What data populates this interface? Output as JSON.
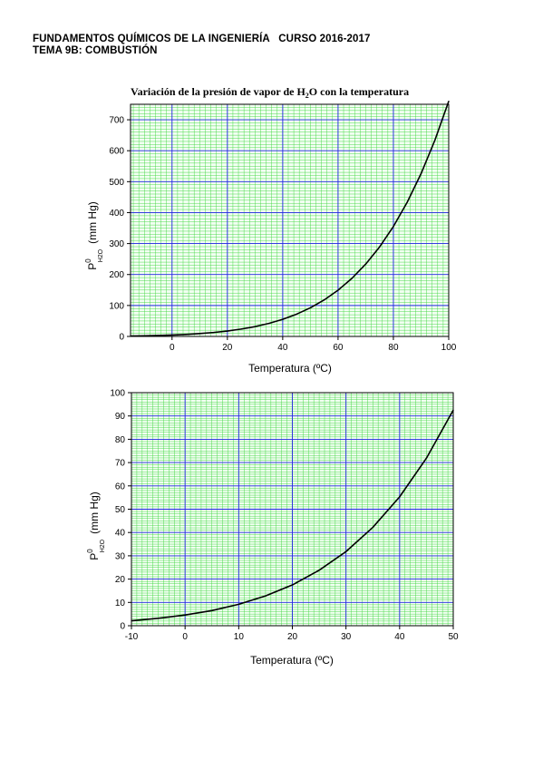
{
  "header": {
    "line1": "FUNDAMENTOS QUÍMICOS DE LA INGENIERÍA   CURSO 2016-2017",
    "line2": "TEMA 9B: COMBUSTIÓN"
  },
  "chart_data": [
    {
      "type": "line",
      "title_main": "Variación de la presión de vapor de H",
      "title_sub": "2",
      "title_end": "O con la temperatura",
      "xlabel": "Temperatura (ºC)",
      "ylabel_main": "P",
      "ylabel_sup": "0",
      "ylabel_sub": "H2O",
      "ylabel_units": "(mm Hg)",
      "xlim": [
        -15,
        100
      ],
      "ylim": [
        0,
        750
      ],
      "xticks": [
        0,
        20,
        40,
        60,
        80,
        100
      ],
      "yticks": [
        0,
        100,
        200,
        300,
        400,
        500,
        600,
        700
      ],
      "grid": true,
      "series": [
        {
          "color": "#000000",
          "x": [
            -15,
            -10,
            -5,
            0,
            5,
            10,
            15,
            20,
            25,
            30,
            35,
            40,
            45,
            50,
            55,
            60,
            65,
            70,
            75,
            80,
            85,
            90,
            95,
            100
          ],
          "y": [
            1.4,
            2.1,
            3.2,
            4.6,
            6.5,
            9.2,
            12.8,
            17.5,
            23.8,
            31.8,
            42.2,
            55.3,
            71.9,
            92.5,
            118.0,
            149.4,
            187.5,
            233.7,
            289.1,
            355.1,
            433.6,
            525.8,
            633.9,
            760.0
          ]
        }
      ]
    },
    {
      "type": "line",
      "xlabel": "Temperatura (ºC)",
      "ylabel_main": "P",
      "ylabel_sup": "0",
      "ylabel_sub": "H2O",
      "ylabel_units": "(mm Hg)",
      "xlim": [
        -10,
        50
      ],
      "ylim": [
        0,
        100
      ],
      "xticks": [
        -10,
        0,
        10,
        20,
        30,
        40,
        50
      ],
      "yticks": [
        0,
        10,
        20,
        30,
        40,
        50,
        60,
        70,
        80,
        90,
        100
      ],
      "grid": true,
      "series": [
        {
          "color": "#000000",
          "x": [
            -10,
            -5,
            0,
            5,
            10,
            15,
            20,
            25,
            30,
            35,
            40,
            45,
            50
          ],
          "y": [
            2.1,
            3.2,
            4.6,
            6.5,
            9.2,
            12.8,
            17.5,
            23.8,
            31.8,
            42.2,
            55.3,
            71.9,
            92.5
          ]
        }
      ]
    }
  ]
}
